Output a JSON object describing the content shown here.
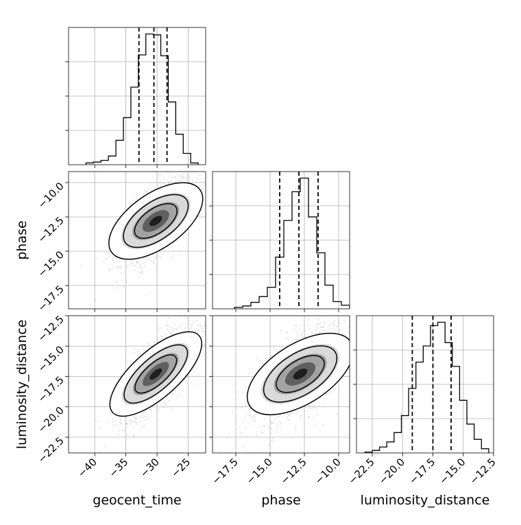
{
  "chart_data": {
    "type": "corner",
    "parameters": [
      "geocent_time",
      "phase",
      "luminosity_distance"
    ],
    "axis_labels": {
      "x": [
        "geocent_time",
        "phase",
        "luminosity_distance"
      ],
      "y_row1": "phase",
      "y_row2": "luminosity_distance"
    },
    "ranges": {
      "geocent_time": [
        -44.2,
        -22.2
      ],
      "phase": [
        -19.2,
        -9.2
      ],
      "luminosity_distance": [
        -23.8,
        -12.5
      ]
    },
    "ticks": {
      "geocent_time": {
        "values": [
          -40,
          -35,
          -30,
          -25
        ],
        "labels": [
          "−40",
          "−35",
          "−30",
          "−25"
        ]
      },
      "phase": {
        "values": [
          -17.5,
          -15.0,
          -12.5,
          -10.0
        ],
        "labels": [
          "−17.5",
          "−15.0",
          "−12.5",
          "−10.0"
        ]
      },
      "luminosity_distance": {
        "values": [
          -22.5,
          -20.0,
          -17.5,
          -15.0,
          -12.5
        ],
        "labels": [
          "−22.5",
          "−20.0",
          "−17.5",
          "−15.0",
          "−12.5"
        ]
      }
    },
    "quantiles": {
      "geocent_time": [
        -32.9,
        -30.5,
        -28.4
      ],
      "phase": [
        -14.3,
        -12.9,
        -11.5
      ],
      "luminosity_distance": [
        -19.2,
        -17.5,
        -16.0
      ]
    },
    "histograms": {
      "geocent_time": {
        "edges": [
          -41.4,
          -40.2,
          -39.0,
          -37.8,
          -36.6,
          -35.4,
          -34.2,
          -33.0,
          -31.8,
          -30.6,
          -29.4,
          -28.2,
          -27.0,
          -25.8,
          -24.6,
          -23.4
        ],
        "counts": [
          2,
          3,
          5,
          10,
          28,
          54,
          89,
          126,
          150,
          149,
          125,
          72,
          35,
          13,
          2
        ]
      },
      "phase": {
        "edges": [
          -17.6,
          -17.0,
          -16.4,
          -15.8,
          -15.2,
          -14.6,
          -14.0,
          -13.4,
          -12.8,
          -12.2,
          -11.6,
          -11.0,
          -10.4,
          -9.8,
          -9.2
        ],
        "counts": [
          2,
          4,
          9,
          17,
          30,
          72,
          123,
          163,
          182,
          128,
          78,
          33,
          10,
          5
        ]
      },
      "luminosity_distance": {
        "edges": [
          -23.1,
          -22.5,
          -21.9,
          -21.3,
          -20.7,
          -20.1,
          -19.5,
          -18.9,
          -18.3,
          -17.7,
          -17.1,
          -16.5,
          -15.9,
          -15.3,
          -14.7,
          -14.1,
          -13.5,
          -12.9
        ],
        "counts": [
          1,
          3,
          7,
          13,
          24,
          44,
          76,
          107,
          126,
          150,
          154,
          130,
          102,
          62,
          34,
          16,
          5
        ]
      }
    },
    "joint": [
      {
        "x": "geocent_time",
        "y": "phase",
        "center": [
          -30.2,
          -12.8
        ],
        "sd": [
          3.0,
          1.6
        ],
        "rho": 0.6
      },
      {
        "x": "geocent_time",
        "y": "luminosity_distance",
        "center": [
          -30.2,
          -17.3
        ],
        "sd": [
          3.0,
          1.9
        ],
        "rho": 0.72
      },
      {
        "x": "phase",
        "y": "luminosity_distance",
        "center": [
          -12.8,
          -17.3
        ],
        "sd": [
          1.6,
          1.9
        ],
        "rho": 0.6
      }
    ],
    "grid": true,
    "colors": {
      "line": "#000000",
      "grid": "#b0b0b0",
      "points": "#b3b3b3"
    }
  }
}
